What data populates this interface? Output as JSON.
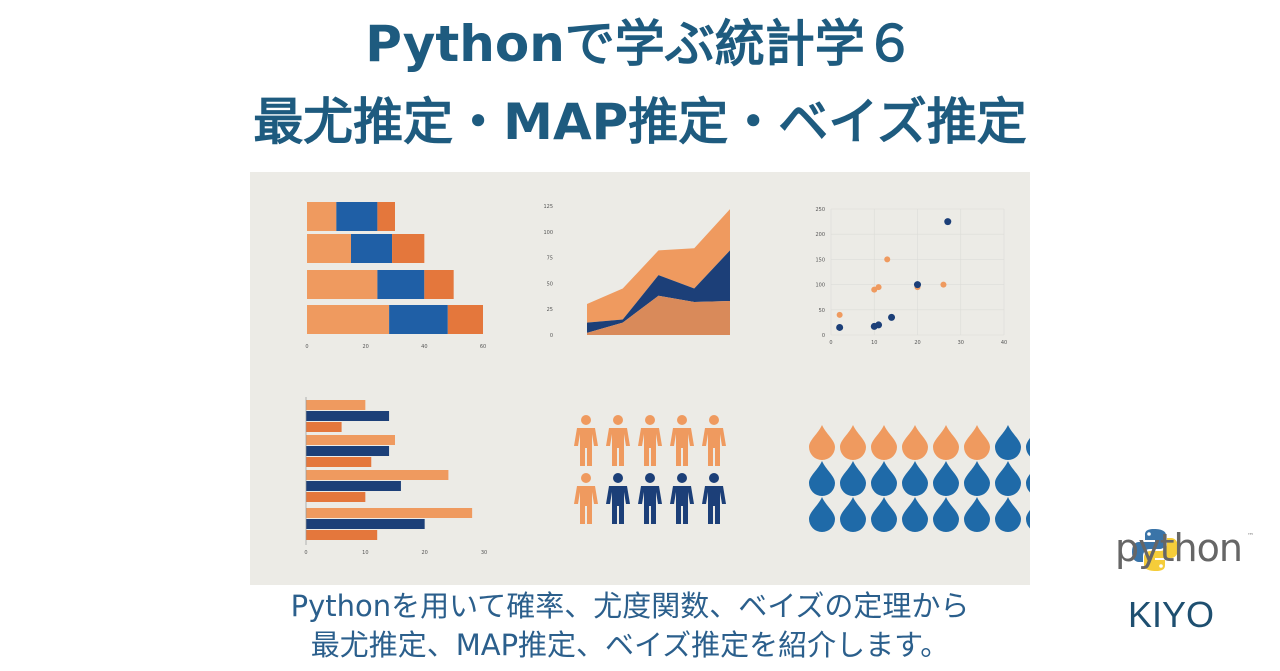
{
  "header": {
    "title_line1": "Pythonで学ぶ統計学６",
    "title_line2": "最尤推定・MAP推定・ベイズ推定"
  },
  "description": {
    "line1": "Pythonを用いて確率、尤度関数、ベイズの定理から",
    "line2": "最尤推定、MAP推定、ベイズ推定を紹介します。"
  },
  "logo": {
    "name": "python",
    "trademark": "™",
    "icon": "python-snake-logo"
  },
  "author": "KIYO",
  "colors": {
    "title": "#1e5b7f",
    "description": "#2b5f8c",
    "orange_light": "#ef9a5f",
    "orange_dark": "#e4773c",
    "blue": "#1f5fa6",
    "navy": "#1c3f78",
    "photo_background": "#ecebe6"
  },
  "illustration": {
    "stacked_bars": {
      "type": "bar",
      "orientation": "horizontal",
      "stacked": true,
      "xticks": [
        "0",
        "20",
        "40",
        "60"
      ],
      "xlim": [
        0,
        60
      ],
      "values": [
        [
          10,
          14,
          6
        ],
        [
          15,
          14,
          11
        ],
        [
          24,
          16,
          10
        ],
        [
          28,
          20,
          12
        ]
      ]
    },
    "area": {
      "type": "area",
      "stacked": true,
      "yticks": [
        "0",
        "25",
        "50",
        "75",
        "100",
        "125"
      ],
      "ylim": [
        0,
        125
      ],
      "layers": [
        [
          2,
          12,
          38,
          32,
          33
        ],
        [
          10,
          3,
          20,
          13,
          49
        ],
        [
          18,
          30,
          24,
          39,
          40
        ]
      ]
    },
    "scatter": {
      "type": "scatter",
      "xlim": [
        0,
        40
      ],
      "ylim": [
        0,
        250
      ],
      "xticks": [
        "0",
        "10",
        "20",
        "30",
        "40"
      ],
      "yticks": [
        "0",
        "50",
        "100",
        "150",
        "200",
        "250"
      ],
      "blue": [
        [
          2,
          15
        ],
        [
          10,
          17
        ],
        [
          11,
          20
        ],
        [
          14,
          35
        ],
        [
          20,
          100
        ],
        [
          27,
          225
        ]
      ],
      "orange": [
        [
          2,
          40
        ],
        [
          10,
          90
        ],
        [
          11,
          95
        ],
        [
          13,
          150
        ],
        [
          20,
          95
        ],
        [
          26,
          100
        ]
      ]
    },
    "grouped_bars": {
      "type": "bar",
      "orientation": "horizontal",
      "xlim": [
        0,
        30
      ],
      "xticks": [
        "0",
        "10",
        "20",
        "30"
      ],
      "values": [
        [
          10,
          14,
          6
        ],
        [
          15,
          14,
          11
        ],
        [
          24,
          16,
          10
        ],
        [
          28,
          20,
          12
        ]
      ]
    },
    "people": {
      "orange": 6,
      "blue": 4,
      "per_row": 5
    },
    "drops": {
      "orange": 6,
      "per_row": 8,
      "rows": 3
    }
  }
}
